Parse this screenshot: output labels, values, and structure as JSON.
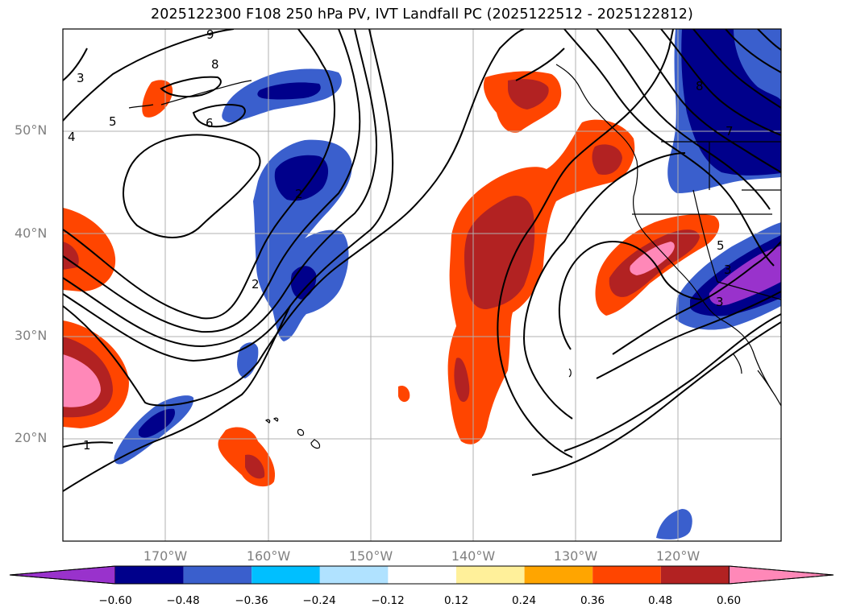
{
  "title": "2025122300 F108 250 hPa PV, IVT Landfall PC (2025122512 - 2025122812)",
  "lat_ticks": [
    "50°N",
    "40°N",
    "30°N",
    "20°N"
  ],
  "lon_ticks": [
    "170°W",
    "160°W",
    "150°W",
    "140°W",
    "130°W",
    "120°W"
  ],
  "colorbar": {
    "colors": [
      "#9932cc",
      "#00008b",
      "#3a5fcd",
      "#00bfff",
      "#b0e2ff",
      "#ffffff",
      "#fff09a",
      "#ffa500",
      "#ff4500",
      "#b22222",
      "#ff88b8"
    ],
    "labels": [
      "−0.60",
      "−0.48",
      "−0.36",
      "−0.24",
      "−0.12",
      "0.12",
      "0.24",
      "0.36",
      "0.48",
      "0.60"
    ]
  },
  "pv_contour_labels": [
    "2",
    "3",
    "4",
    "5",
    "6",
    "8",
    "9",
    "1",
    "2",
    "5",
    "3",
    "3",
    "8",
    "7"
  ],
  "chart_data": {
    "type": "map",
    "title": "2025122300 F108 250 hPa PV, IVT Landfall PC (2025122512 - 2025122812)",
    "field_contoured": "250 hPa PV (PVU)",
    "field_shaded": "IVT Landfall PC",
    "lat_range": [
      10,
      60
    ],
    "lon_range": [
      -180,
      -110
    ],
    "shading_levels": [
      -0.6,
      -0.48,
      -0.36,
      -0.24,
      -0.12,
      0.12,
      0.24,
      0.36,
      0.48,
      0.6
    ]
  }
}
